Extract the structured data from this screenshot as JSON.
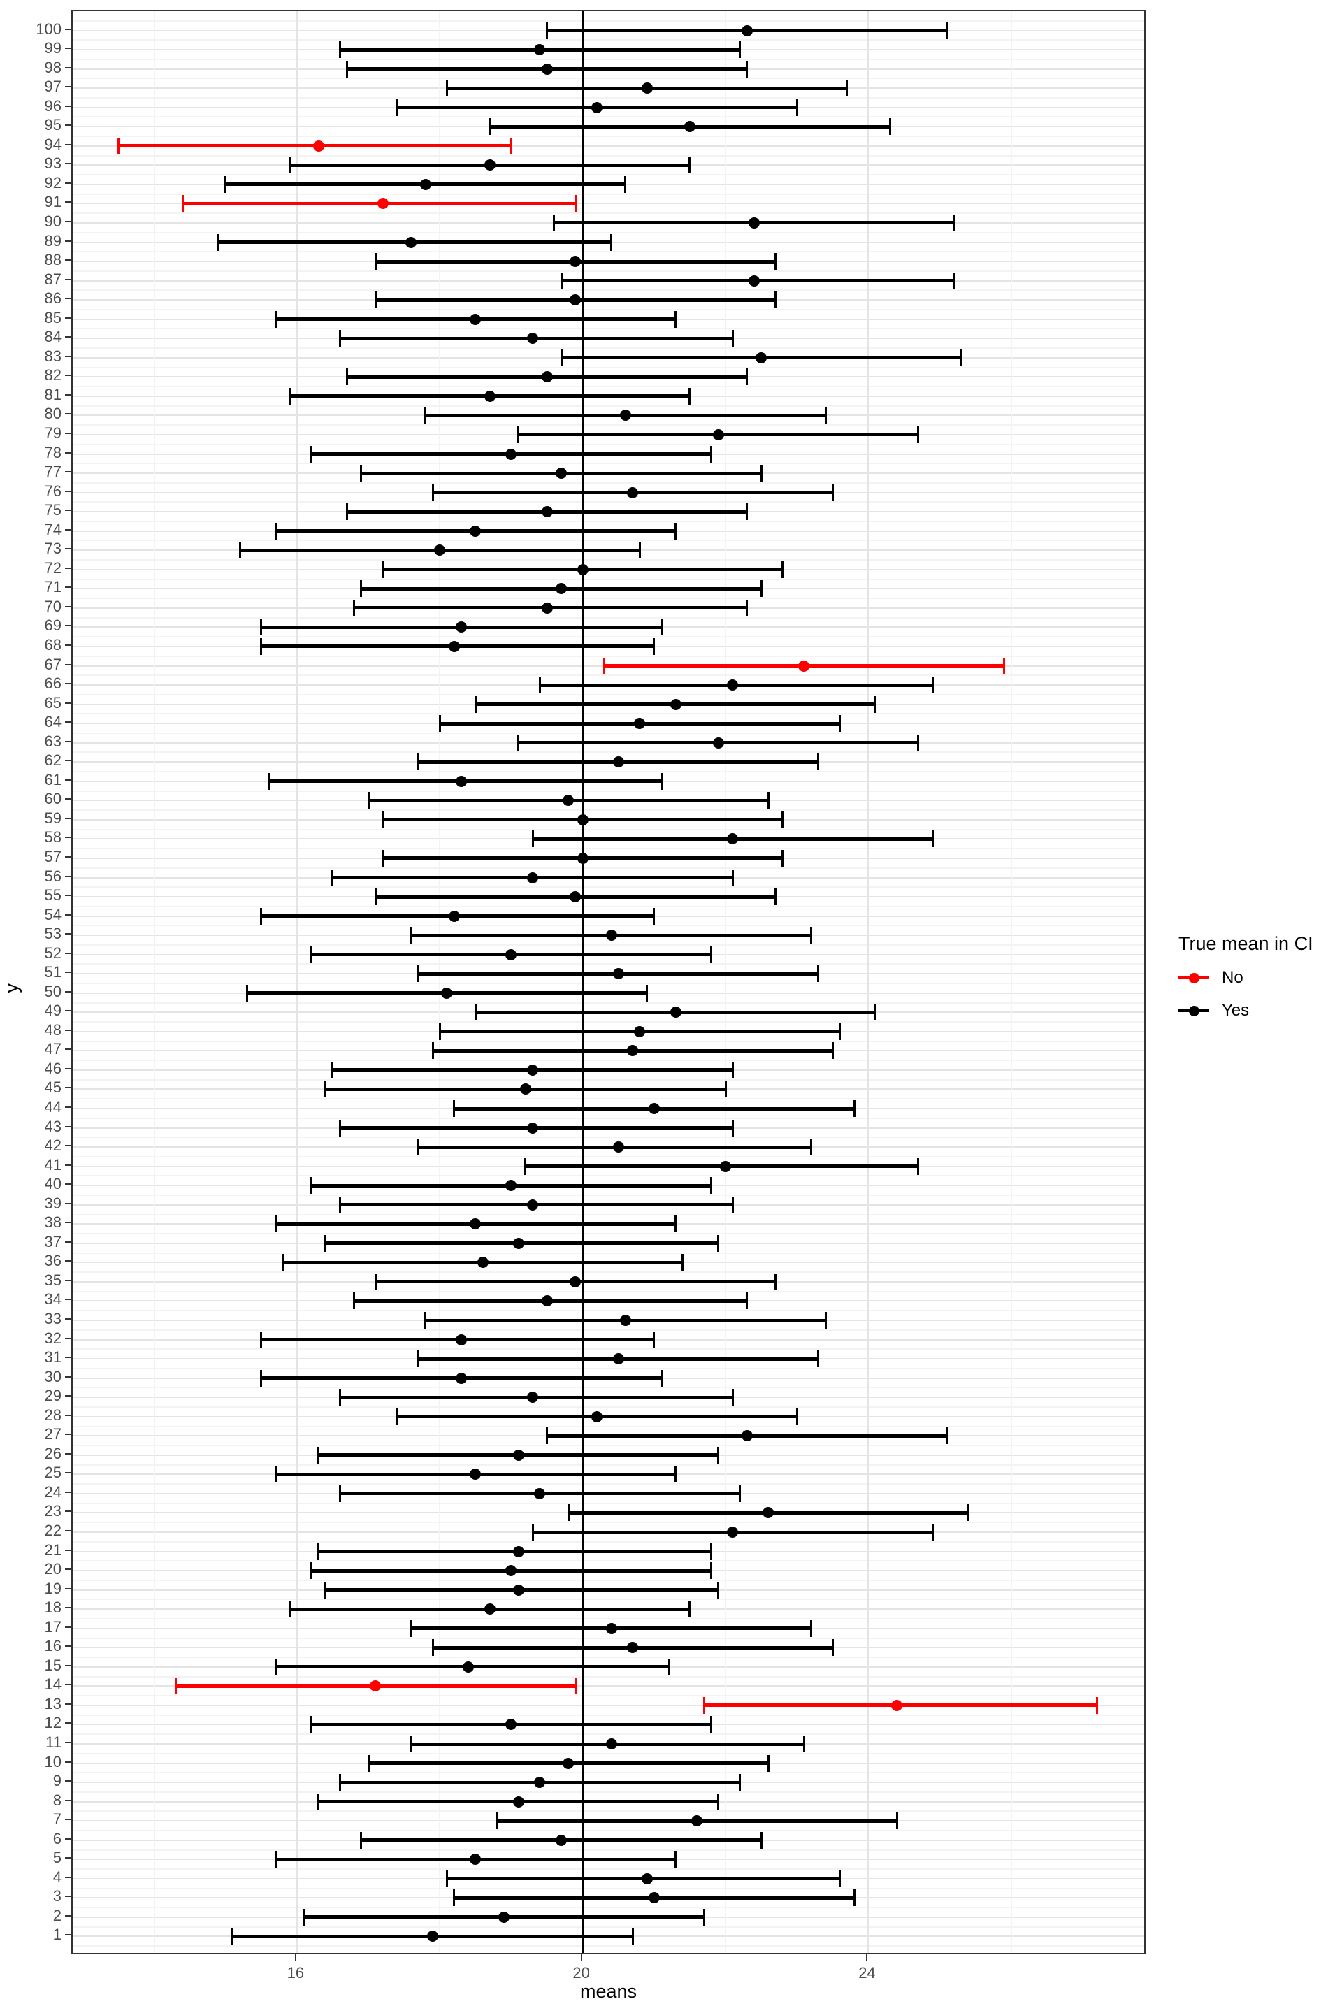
{
  "legend": {
    "title": "True mean in CI",
    "items": [
      {
        "label": "No",
        "color": "#ff0000"
      },
      {
        "label": "Yes",
        "color": "#000000"
      }
    ]
  },
  "chart_data": {
    "type": "scatter",
    "mark": "point-with-horizontal-error-bar",
    "title": "",
    "xlabel": "means",
    "ylabel": "y",
    "xlim": [
      12.86,
      27.9
    ],
    "ylim": [
      0,
      101
    ],
    "x_ticks": [
      16,
      20,
      24
    ],
    "x_minor_gridlines": [
      14,
      18,
      22,
      26
    ],
    "reference_line_x": 20,
    "grid": "on",
    "legend_position": "right",
    "colors": {
      "in_ci": "#000000",
      "not_in_ci": "#ff0000",
      "axis_text": "#4d4d4d",
      "panel_border": "#333333"
    },
    "rows": [
      {
        "y": 100,
        "lo": 19.5,
        "mean": 22.3,
        "hi": 25.1,
        "in_ci": "Yes"
      },
      {
        "y": 99,
        "lo": 16.6,
        "mean": 19.4,
        "hi": 22.2,
        "in_ci": "Yes"
      },
      {
        "y": 98,
        "lo": 16.7,
        "mean": 19.5,
        "hi": 22.3,
        "in_ci": "Yes"
      },
      {
        "y": 97,
        "lo": 18.1,
        "mean": 20.9,
        "hi": 23.7,
        "in_ci": "Yes"
      },
      {
        "y": 96,
        "lo": 17.4,
        "mean": 20.2,
        "hi": 23.0,
        "in_ci": "Yes"
      },
      {
        "y": 95,
        "lo": 18.7,
        "mean": 21.5,
        "hi": 24.3,
        "in_ci": "Yes"
      },
      {
        "y": 94,
        "lo": 13.5,
        "mean": 16.3,
        "hi": 19.0,
        "in_ci": "No"
      },
      {
        "y": 93,
        "lo": 15.9,
        "mean": 18.7,
        "hi": 21.5,
        "in_ci": "Yes"
      },
      {
        "y": 92,
        "lo": 15.0,
        "mean": 17.8,
        "hi": 20.6,
        "in_ci": "Yes"
      },
      {
        "y": 91,
        "lo": 14.4,
        "mean": 17.2,
        "hi": 19.9,
        "in_ci": "No"
      },
      {
        "y": 90,
        "lo": 19.6,
        "mean": 22.4,
        "hi": 25.2,
        "in_ci": "Yes"
      },
      {
        "y": 89,
        "lo": 14.9,
        "mean": 17.6,
        "hi": 20.4,
        "in_ci": "Yes"
      },
      {
        "y": 88,
        "lo": 17.1,
        "mean": 19.9,
        "hi": 22.7,
        "in_ci": "Yes"
      },
      {
        "y": 87,
        "lo": 19.7,
        "mean": 22.4,
        "hi": 25.2,
        "in_ci": "Yes"
      },
      {
        "y": 86,
        "lo": 17.1,
        "mean": 19.9,
        "hi": 22.7,
        "in_ci": "Yes"
      },
      {
        "y": 85,
        "lo": 15.7,
        "mean": 18.5,
        "hi": 21.3,
        "in_ci": "Yes"
      },
      {
        "y": 84,
        "lo": 16.6,
        "mean": 19.3,
        "hi": 22.1,
        "in_ci": "Yes"
      },
      {
        "y": 83,
        "lo": 19.7,
        "mean": 22.5,
        "hi": 25.3,
        "in_ci": "Yes"
      },
      {
        "y": 82,
        "lo": 16.7,
        "mean": 19.5,
        "hi": 22.3,
        "in_ci": "Yes"
      },
      {
        "y": 81,
        "lo": 15.9,
        "mean": 18.7,
        "hi": 21.5,
        "in_ci": "Yes"
      },
      {
        "y": 80,
        "lo": 17.8,
        "mean": 20.6,
        "hi": 23.4,
        "in_ci": "Yes"
      },
      {
        "y": 79,
        "lo": 19.1,
        "mean": 21.9,
        "hi": 24.7,
        "in_ci": "Yes"
      },
      {
        "y": 78,
        "lo": 16.2,
        "mean": 19.0,
        "hi": 21.8,
        "in_ci": "Yes"
      },
      {
        "y": 77,
        "lo": 16.9,
        "mean": 19.7,
        "hi": 22.5,
        "in_ci": "Yes"
      },
      {
        "y": 76,
        "lo": 17.9,
        "mean": 20.7,
        "hi": 23.5,
        "in_ci": "Yes"
      },
      {
        "y": 75,
        "lo": 16.7,
        "mean": 19.5,
        "hi": 22.3,
        "in_ci": "Yes"
      },
      {
        "y": 74,
        "lo": 15.7,
        "mean": 18.5,
        "hi": 21.3,
        "in_ci": "Yes"
      },
      {
        "y": 73,
        "lo": 15.2,
        "mean": 18.0,
        "hi": 20.8,
        "in_ci": "Yes"
      },
      {
        "y": 72,
        "lo": 17.2,
        "mean": 20.0,
        "hi": 22.8,
        "in_ci": "Yes"
      },
      {
        "y": 71,
        "lo": 16.9,
        "mean": 19.7,
        "hi": 22.5,
        "in_ci": "Yes"
      },
      {
        "y": 70,
        "lo": 16.8,
        "mean": 19.5,
        "hi": 22.3,
        "in_ci": "Yes"
      },
      {
        "y": 69,
        "lo": 15.5,
        "mean": 18.3,
        "hi": 21.1,
        "in_ci": "Yes"
      },
      {
        "y": 68,
        "lo": 15.5,
        "mean": 18.2,
        "hi": 21.0,
        "in_ci": "Yes"
      },
      {
        "y": 67,
        "lo": 20.3,
        "mean": 23.1,
        "hi": 25.9,
        "in_ci": "No"
      },
      {
        "y": 66,
        "lo": 19.4,
        "mean": 22.1,
        "hi": 24.9,
        "in_ci": "Yes"
      },
      {
        "y": 65,
        "lo": 18.5,
        "mean": 21.3,
        "hi": 24.1,
        "in_ci": "Yes"
      },
      {
        "y": 64,
        "lo": 18.0,
        "mean": 20.8,
        "hi": 23.6,
        "in_ci": "Yes"
      },
      {
        "y": 63,
        "lo": 19.1,
        "mean": 21.9,
        "hi": 24.7,
        "in_ci": "Yes"
      },
      {
        "y": 62,
        "lo": 17.7,
        "mean": 20.5,
        "hi": 23.3,
        "in_ci": "Yes"
      },
      {
        "y": 61,
        "lo": 15.6,
        "mean": 18.3,
        "hi": 21.1,
        "in_ci": "Yes"
      },
      {
        "y": 60,
        "lo": 17.0,
        "mean": 19.8,
        "hi": 22.6,
        "in_ci": "Yes"
      },
      {
        "y": 59,
        "lo": 17.2,
        "mean": 20.0,
        "hi": 22.8,
        "in_ci": "Yes"
      },
      {
        "y": 58,
        "lo": 19.3,
        "mean": 22.1,
        "hi": 24.9,
        "in_ci": "Yes"
      },
      {
        "y": 57,
        "lo": 17.2,
        "mean": 20.0,
        "hi": 22.8,
        "in_ci": "Yes"
      },
      {
        "y": 56,
        "lo": 16.5,
        "mean": 19.3,
        "hi": 22.1,
        "in_ci": "Yes"
      },
      {
        "y": 55,
        "lo": 17.1,
        "mean": 19.9,
        "hi": 22.7,
        "in_ci": "Yes"
      },
      {
        "y": 54,
        "lo": 15.5,
        "mean": 18.2,
        "hi": 21.0,
        "in_ci": "Yes"
      },
      {
        "y": 53,
        "lo": 17.6,
        "mean": 20.4,
        "hi": 23.2,
        "in_ci": "Yes"
      },
      {
        "y": 52,
        "lo": 16.2,
        "mean": 19.0,
        "hi": 21.8,
        "in_ci": "Yes"
      },
      {
        "y": 51,
        "lo": 17.7,
        "mean": 20.5,
        "hi": 23.3,
        "in_ci": "Yes"
      },
      {
        "y": 50,
        "lo": 15.3,
        "mean": 18.1,
        "hi": 20.9,
        "in_ci": "Yes"
      },
      {
        "y": 49,
        "lo": 18.5,
        "mean": 21.3,
        "hi": 24.1,
        "in_ci": "Yes"
      },
      {
        "y": 48,
        "lo": 18.0,
        "mean": 20.8,
        "hi": 23.6,
        "in_ci": "Yes"
      },
      {
        "y": 47,
        "lo": 17.9,
        "mean": 20.7,
        "hi": 23.5,
        "in_ci": "Yes"
      },
      {
        "y": 46,
        "lo": 16.5,
        "mean": 19.3,
        "hi": 22.1,
        "in_ci": "Yes"
      },
      {
        "y": 45,
        "lo": 16.4,
        "mean": 19.2,
        "hi": 22.0,
        "in_ci": "Yes"
      },
      {
        "y": 44,
        "lo": 18.2,
        "mean": 21.0,
        "hi": 23.8,
        "in_ci": "Yes"
      },
      {
        "y": 43,
        "lo": 16.6,
        "mean": 19.3,
        "hi": 22.1,
        "in_ci": "Yes"
      },
      {
        "y": 42,
        "lo": 17.7,
        "mean": 20.5,
        "hi": 23.2,
        "in_ci": "Yes"
      },
      {
        "y": 41,
        "lo": 19.2,
        "mean": 22.0,
        "hi": 24.7,
        "in_ci": "Yes"
      },
      {
        "y": 40,
        "lo": 16.2,
        "mean": 19.0,
        "hi": 21.8,
        "in_ci": "Yes"
      },
      {
        "y": 39,
        "lo": 16.6,
        "mean": 19.3,
        "hi": 22.1,
        "in_ci": "Yes"
      },
      {
        "y": 38,
        "lo": 15.7,
        "mean": 18.5,
        "hi": 21.3,
        "in_ci": "Yes"
      },
      {
        "y": 37,
        "lo": 16.4,
        "mean": 19.1,
        "hi": 21.9,
        "in_ci": "Yes"
      },
      {
        "y": 36,
        "lo": 15.8,
        "mean": 18.6,
        "hi": 21.4,
        "in_ci": "Yes"
      },
      {
        "y": 35,
        "lo": 17.1,
        "mean": 19.9,
        "hi": 22.7,
        "in_ci": "Yes"
      },
      {
        "y": 34,
        "lo": 16.8,
        "mean": 19.5,
        "hi": 22.3,
        "in_ci": "Yes"
      },
      {
        "y": 33,
        "lo": 17.8,
        "mean": 20.6,
        "hi": 23.4,
        "in_ci": "Yes"
      },
      {
        "y": 32,
        "lo": 15.5,
        "mean": 18.3,
        "hi": 21.0,
        "in_ci": "Yes"
      },
      {
        "y": 31,
        "lo": 17.7,
        "mean": 20.5,
        "hi": 23.3,
        "in_ci": "Yes"
      },
      {
        "y": 30,
        "lo": 15.5,
        "mean": 18.3,
        "hi": 21.1,
        "in_ci": "Yes"
      },
      {
        "y": 29,
        "lo": 16.6,
        "mean": 19.3,
        "hi": 22.1,
        "in_ci": "Yes"
      },
      {
        "y": 28,
        "lo": 17.4,
        "mean": 20.2,
        "hi": 23.0,
        "in_ci": "Yes"
      },
      {
        "y": 27,
        "lo": 19.5,
        "mean": 22.3,
        "hi": 25.1,
        "in_ci": "Yes"
      },
      {
        "y": 26,
        "lo": 16.3,
        "mean": 19.1,
        "hi": 21.9,
        "in_ci": "Yes"
      },
      {
        "y": 25,
        "lo": 15.7,
        "mean": 18.5,
        "hi": 21.3,
        "in_ci": "Yes"
      },
      {
        "y": 24,
        "lo": 16.6,
        "mean": 19.4,
        "hi": 22.2,
        "in_ci": "Yes"
      },
      {
        "y": 23,
        "lo": 19.8,
        "mean": 22.6,
        "hi": 25.4,
        "in_ci": "Yes"
      },
      {
        "y": 22,
        "lo": 19.3,
        "mean": 22.1,
        "hi": 24.9,
        "in_ci": "Yes"
      },
      {
        "y": 21,
        "lo": 16.3,
        "mean": 19.1,
        "hi": 21.8,
        "in_ci": "Yes"
      },
      {
        "y": 20,
        "lo": 16.2,
        "mean": 19.0,
        "hi": 21.8,
        "in_ci": "Yes"
      },
      {
        "y": 19,
        "lo": 16.4,
        "mean": 19.1,
        "hi": 21.9,
        "in_ci": "Yes"
      },
      {
        "y": 18,
        "lo": 15.9,
        "mean": 18.7,
        "hi": 21.5,
        "in_ci": "Yes"
      },
      {
        "y": 17,
        "lo": 17.6,
        "mean": 20.4,
        "hi": 23.2,
        "in_ci": "Yes"
      },
      {
        "y": 16,
        "lo": 17.9,
        "mean": 20.7,
        "hi": 23.5,
        "in_ci": "Yes"
      },
      {
        "y": 15,
        "lo": 15.7,
        "mean": 18.4,
        "hi": 21.2,
        "in_ci": "Yes"
      },
      {
        "y": 14,
        "lo": 14.3,
        "mean": 17.1,
        "hi": 19.9,
        "in_ci": "No"
      },
      {
        "y": 13,
        "lo": 21.7,
        "mean": 24.4,
        "hi": 27.2,
        "in_ci": "No"
      },
      {
        "y": 12,
        "lo": 16.2,
        "mean": 19.0,
        "hi": 21.8,
        "in_ci": "Yes"
      },
      {
        "y": 11,
        "lo": 17.6,
        "mean": 20.4,
        "hi": 23.1,
        "in_ci": "Yes"
      },
      {
        "y": 10,
        "lo": 17.0,
        "mean": 19.8,
        "hi": 22.6,
        "in_ci": "Yes"
      },
      {
        "y": 9,
        "lo": 16.6,
        "mean": 19.4,
        "hi": 22.2,
        "in_ci": "Yes"
      },
      {
        "y": 8,
        "lo": 16.3,
        "mean": 19.1,
        "hi": 21.9,
        "in_ci": "Yes"
      },
      {
        "y": 7,
        "lo": 18.8,
        "mean": 21.6,
        "hi": 24.4,
        "in_ci": "Yes"
      },
      {
        "y": 6,
        "lo": 16.9,
        "mean": 19.7,
        "hi": 22.5,
        "in_ci": "Yes"
      },
      {
        "y": 5,
        "lo": 15.7,
        "mean": 18.5,
        "hi": 21.3,
        "in_ci": "Yes"
      },
      {
        "y": 4,
        "lo": 18.1,
        "mean": 20.9,
        "hi": 23.6,
        "in_ci": "Yes"
      },
      {
        "y": 3,
        "lo": 18.2,
        "mean": 21.0,
        "hi": 23.8,
        "in_ci": "Yes"
      },
      {
        "y": 2,
        "lo": 16.1,
        "mean": 18.9,
        "hi": 21.7,
        "in_ci": "Yes"
      },
      {
        "y": 1,
        "lo": 15.1,
        "mean": 17.9,
        "hi": 20.7,
        "in_ci": "Yes"
      }
    ]
  }
}
